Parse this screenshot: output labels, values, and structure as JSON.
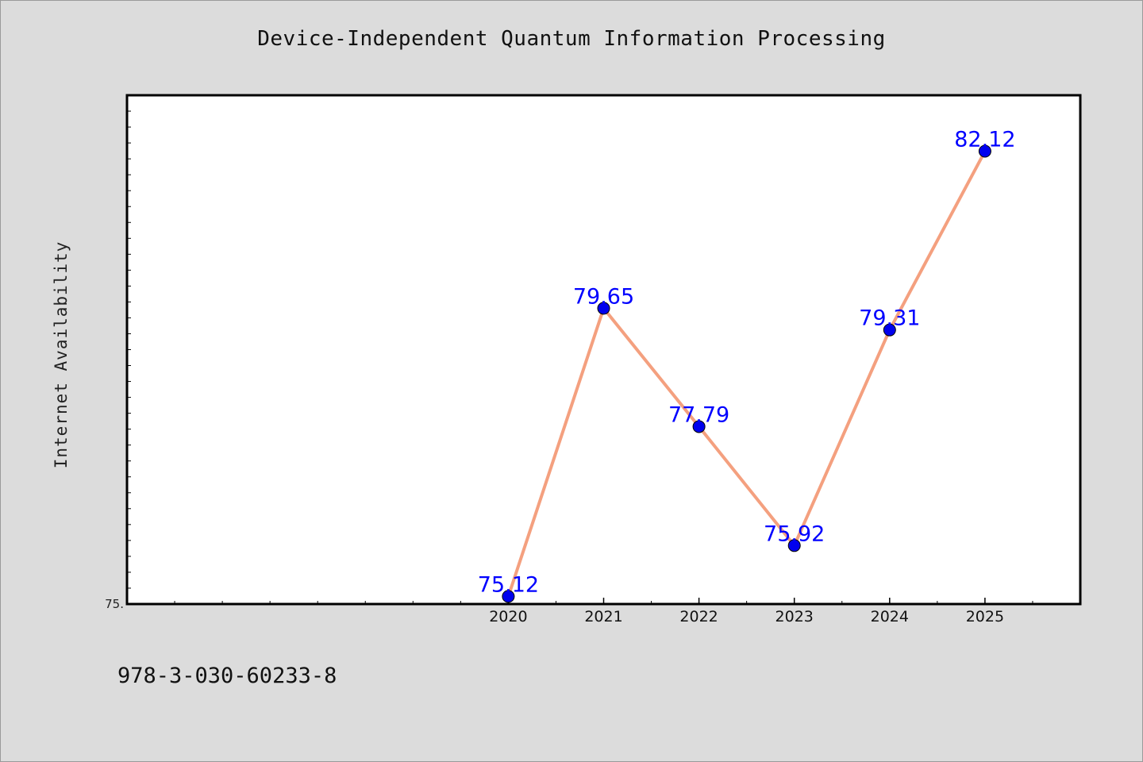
{
  "chart_data": {
    "type": "line",
    "title": "Device-Independent Quantum Information Processing",
    "xlabel": "",
    "ylabel": "Internet Availability",
    "x": [
      2020,
      2021,
      2022,
      2023,
      2024,
      2025
    ],
    "series": [
      {
        "values": [
          75.12,
          79.65,
          77.79,
          75.92,
          79.31,
          82.12
        ]
      }
    ],
    "data_labels": [
      "75.12",
      "79.65",
      "77.79",
      "75.92",
      "79.31",
      "82.12"
    ],
    "xlim": [
      2016,
      2026
    ],
    "ylim": [
      75,
      83
    ],
    "y_tick_label": "75.",
    "grid": false,
    "colors": {
      "line": "#f4a07f",
      "marker": "#0000ee",
      "label": "#0000ff",
      "background": "#dcdcdc",
      "plot_bg": "#ffffff"
    }
  },
  "footer": {
    "isbn": "978-3-030-60233-8"
  }
}
